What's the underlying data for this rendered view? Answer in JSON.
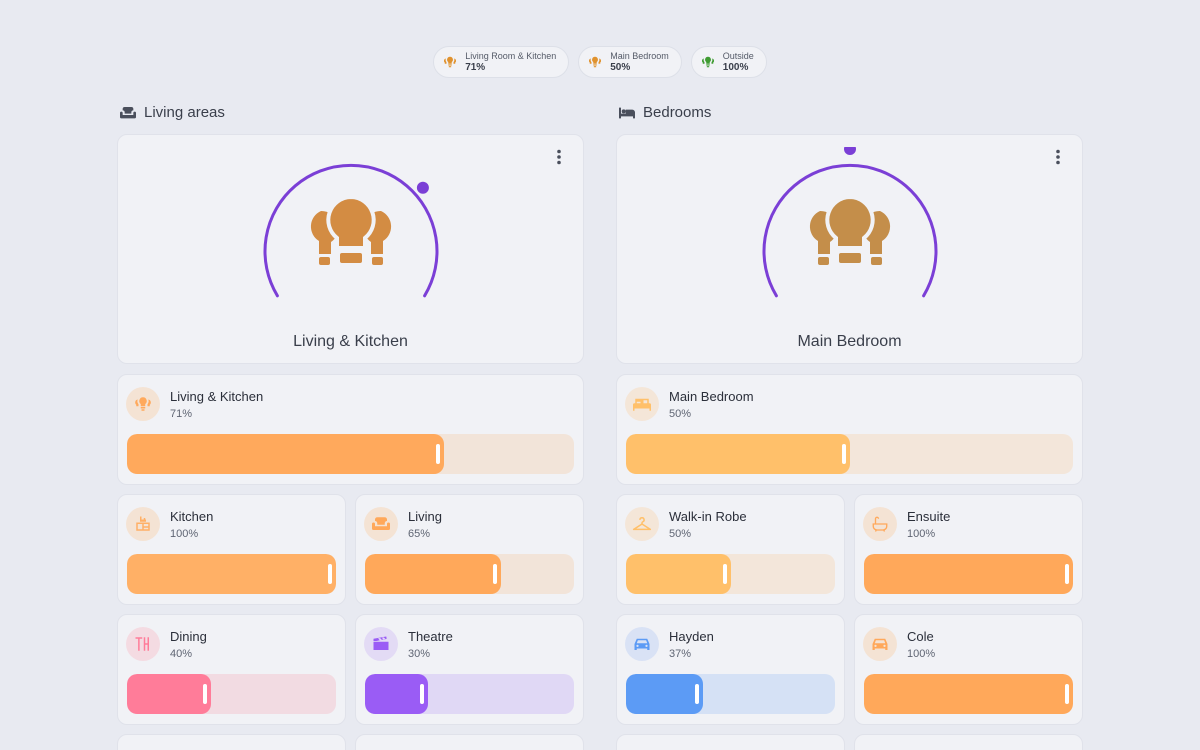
{
  "summary_chips": [
    {
      "name": "Living Room & Kitchen",
      "value": "71%",
      "icon": "lightbulb-group-icon",
      "color": "#e0922e"
    },
    {
      "name": "Main Bedroom",
      "value": "50%",
      "icon": "lightbulb-group-icon",
      "color": "#e0922e"
    },
    {
      "name": "Outside",
      "value": "100%",
      "icon": "lightbulb-group-icon",
      "color": "#3f9b32"
    }
  ],
  "sections": {
    "living": {
      "title": "Living areas",
      "icon": "sofa-icon",
      "dial": {
        "label": "Living & Kitchen",
        "level": 0.71,
        "accent": "#7b3fd6",
        "bulb_color": "#d38c43"
      },
      "main_tile": {
        "name": "Living & Kitchen",
        "value": "71%",
        "level": 0.71,
        "icon": "lightbulb-group-icon",
        "color": "#ffa95c",
        "track": "#f2e4d9"
      },
      "tiles": [
        {
          "name": "Kitchen",
          "value": "100%",
          "level": 1.0,
          "icon": "kitchen-icon",
          "color": "#ffb066",
          "track": "#f2e4d9"
        },
        {
          "name": "Living",
          "value": "65%",
          "level": 0.65,
          "icon": "sofa-icon",
          "color": "#ffa85a",
          "track": "#f2e4d9"
        },
        {
          "name": "Dining",
          "value": "40%",
          "level": 0.4,
          "icon": "dining-icon",
          "color": "#ff7c99",
          "track": "#f2dbe2"
        },
        {
          "name": "Theatre",
          "value": "30%",
          "level": 0.3,
          "icon": "theatre-icon",
          "color": "#9a5cf5",
          "track": "#e0d8f5"
        }
      ]
    },
    "bedrooms": {
      "title": "Bedrooms",
      "icon": "bed-icon",
      "dial": {
        "label": "Main Bedroom",
        "level": 0.5,
        "accent": "#7b3fd6",
        "bulb_color": "#c48e4a"
      },
      "main_tile": {
        "name": "Main Bedroom",
        "value": "50%",
        "level": 0.5,
        "icon": "bed-icon",
        "color": "#ffc06a",
        "track": "#f3e6da"
      },
      "tiles": [
        {
          "name": "Walk-in Robe",
          "value": "50%",
          "level": 0.5,
          "icon": "hanger-icon",
          "color": "#ffc06a",
          "track": "#f3e6da"
        },
        {
          "name": "Ensuite",
          "value": "100%",
          "level": 1.0,
          "icon": "bathtub-icon",
          "color": "#ffa85a",
          "track": "#f2e4d9"
        },
        {
          "name": "Hayden",
          "value": "37%",
          "level": 0.37,
          "icon": "car-icon",
          "color": "#5c9bf5",
          "track": "#d5e1f5"
        },
        {
          "name": "Cole",
          "value": "100%",
          "level": 1.0,
          "icon": "car-icon",
          "color": "#ffa85a",
          "track": "#f2e4d9"
        }
      ]
    }
  }
}
